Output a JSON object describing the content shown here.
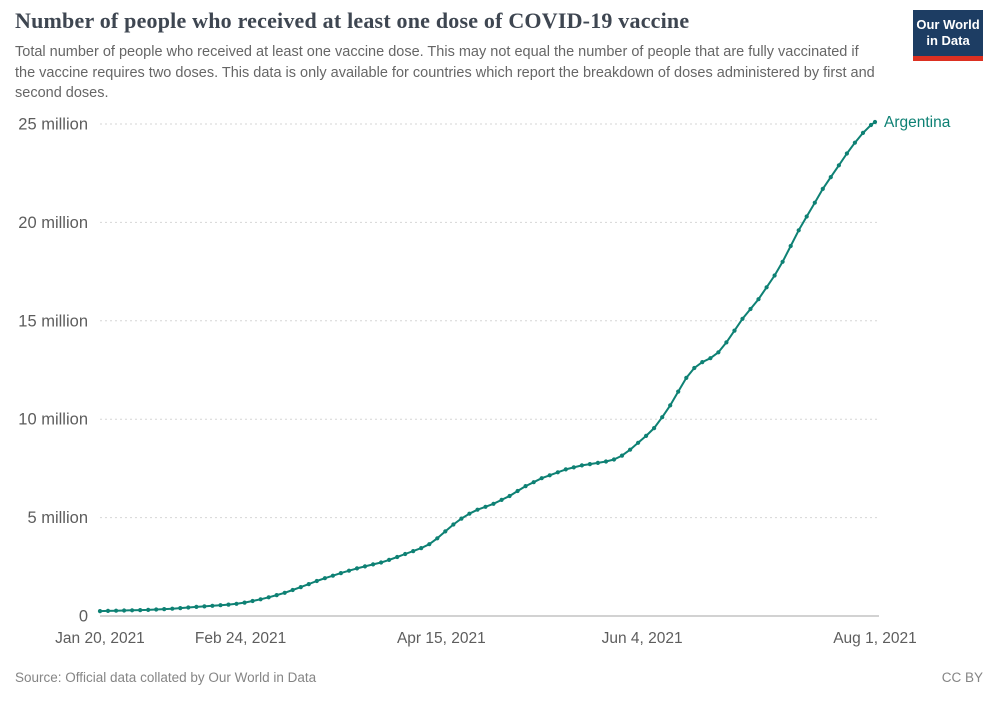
{
  "header": {
    "title": "Number of people who received at least one dose of COVID-19 vaccine",
    "subtitle": "Total number of people who received at least one vaccine dose. This may not equal the number of people that are fully vaccinated if the vaccine requires two doses. This data is only available for countries which report the breakdown of doses administered by first and second doses.",
    "logo_line1": "Our World",
    "logo_line2": "in Data",
    "logo_bg_color": "#1d3d63",
    "logo_accent_color": "#dc3021"
  },
  "footer": {
    "source": "Source: Official data collated by Our World in Data",
    "license": "CC BY"
  },
  "chart_data": {
    "type": "line",
    "title": "Number of people who received at least one dose of COVID-19 vaccine",
    "series_name": "Argentina",
    "color": "#0e8174",
    "unit": "million people",
    "grid": "dotted-horizontal",
    "legend_position": "end-of-line",
    "ylim": [
      0,
      25
    ],
    "xlim_days": [
      0,
      193
    ],
    "x_axis_start_date": "Jan 20, 2021",
    "x_axis_end_date": "Aug 1, 2021",
    "x_ticks": [
      {
        "day": 0,
        "label": "Jan 20, 2021"
      },
      {
        "day": 35,
        "label": "Feb 24, 2021"
      },
      {
        "day": 85,
        "label": "Apr 15, 2021"
      },
      {
        "day": 135,
        "label": "Jun 4, 2021"
      },
      {
        "day": 193,
        "label": "Aug 1, 2021"
      }
    ],
    "y_ticks": [
      {
        "value": 0,
        "label": "0"
      },
      {
        "value": 5,
        "label": "5 million"
      },
      {
        "value": 10,
        "label": "10 million"
      },
      {
        "value": 15,
        "label": "15 million"
      },
      {
        "value": 20,
        "label": "20 million"
      },
      {
        "value": 25,
        "label": "25 million"
      }
    ],
    "points_format": "[day_offset_from_Jan_20_2021, people_millions]",
    "points": [
      [
        0,
        0.25
      ],
      [
        2,
        0.26
      ],
      [
        4,
        0.27
      ],
      [
        6,
        0.28
      ],
      [
        8,
        0.29
      ],
      [
        10,
        0.3
      ],
      [
        12,
        0.31
      ],
      [
        14,
        0.33
      ],
      [
        16,
        0.35
      ],
      [
        18,
        0.37
      ],
      [
        20,
        0.4
      ],
      [
        22,
        0.43
      ],
      [
        24,
        0.46
      ],
      [
        26,
        0.49
      ],
      [
        28,
        0.52
      ],
      [
        30,
        0.55
      ],
      [
        32,
        0.58
      ],
      [
        34,
        0.62
      ],
      [
        36,
        0.68
      ],
      [
        38,
        0.76
      ],
      [
        40,
        0.85
      ],
      [
        42,
        0.95
      ],
      [
        44,
        1.06
      ],
      [
        46,
        1.18
      ],
      [
        48,
        1.32
      ],
      [
        50,
        1.47
      ],
      [
        52,
        1.62
      ],
      [
        54,
        1.78
      ],
      [
        56,
        1.92
      ],
      [
        58,
        2.05
      ],
      [
        60,
        2.18
      ],
      [
        62,
        2.3
      ],
      [
        64,
        2.42
      ],
      [
        66,
        2.52
      ],
      [
        68,
        2.62
      ],
      [
        70,
        2.72
      ],
      [
        72,
        2.85
      ],
      [
        74,
        3.0
      ],
      [
        76,
        3.15
      ],
      [
        78,
        3.3
      ],
      [
        80,
        3.45
      ],
      [
        82,
        3.65
      ],
      [
        84,
        3.95
      ],
      [
        86,
        4.3
      ],
      [
        88,
        4.65
      ],
      [
        90,
        4.95
      ],
      [
        92,
        5.2
      ],
      [
        94,
        5.4
      ],
      [
        96,
        5.55
      ],
      [
        98,
        5.7
      ],
      [
        100,
        5.9
      ],
      [
        102,
        6.1
      ],
      [
        104,
        6.35
      ],
      [
        106,
        6.6
      ],
      [
        108,
        6.8
      ],
      [
        110,
        7.0
      ],
      [
        112,
        7.15
      ],
      [
        114,
        7.3
      ],
      [
        116,
        7.45
      ],
      [
        118,
        7.55
      ],
      [
        120,
        7.65
      ],
      [
        122,
        7.72
      ],
      [
        124,
        7.78
      ],
      [
        126,
        7.85
      ],
      [
        128,
        7.95
      ],
      [
        130,
        8.15
      ],
      [
        132,
        8.45
      ],
      [
        134,
        8.8
      ],
      [
        136,
        9.15
      ],
      [
        138,
        9.55
      ],
      [
        140,
        10.1
      ],
      [
        142,
        10.7
      ],
      [
        144,
        11.4
      ],
      [
        146,
        12.1
      ],
      [
        148,
        12.6
      ],
      [
        150,
        12.9
      ],
      [
        152,
        13.1
      ],
      [
        154,
        13.4
      ],
      [
        156,
        13.9
      ],
      [
        158,
        14.5
      ],
      [
        160,
        15.1
      ],
      [
        162,
        15.6
      ],
      [
        164,
        16.1
      ],
      [
        166,
        16.7
      ],
      [
        168,
        17.3
      ],
      [
        170,
        18.0
      ],
      [
        172,
        18.8
      ],
      [
        174,
        19.6
      ],
      [
        176,
        20.3
      ],
      [
        178,
        21.0
      ],
      [
        180,
        21.7
      ],
      [
        182,
        22.3
      ],
      [
        184,
        22.9
      ],
      [
        186,
        23.5
      ],
      [
        188,
        24.05
      ],
      [
        190,
        24.55
      ],
      [
        192,
        24.95
      ],
      [
        193,
        25.1
      ]
    ]
  }
}
